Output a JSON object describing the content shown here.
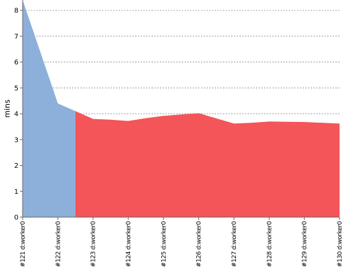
{
  "chart_data": {
    "type": "area",
    "ylabel": "mins",
    "xlabel": "",
    "ylim": [
      0,
      8.4
    ],
    "yticks": [
      0,
      1,
      2,
      3,
      4,
      5,
      6,
      7,
      8
    ],
    "grid": true,
    "legend": "none",
    "categories": [
      "#121 d:worker0",
      "#122 d:worker0",
      "#123 d:worker0",
      "#124 d:worker0",
      "#125 d:worker0",
      "#126 d:worker0",
      "#127 d:worker0",
      "#128 d:worker0",
      "#129 d:worker0",
      "#130 d:worker0"
    ],
    "segments": [
      {
        "color": "#8db0db",
        "points": [
          [
            0,
            8.4
          ],
          [
            1,
            4.4
          ],
          [
            1.5,
            4.1
          ]
        ]
      },
      {
        "color": "#f35558",
        "points": [
          [
            1.5,
            4.1
          ],
          [
            2,
            3.8
          ],
          [
            2.5,
            3.77
          ],
          [
            3,
            3.72
          ],
          [
            3.5,
            3.83
          ],
          [
            4,
            3.92
          ],
          [
            5,
            4.02
          ],
          [
            6,
            3.62
          ],
          [
            6.5,
            3.65
          ],
          [
            7,
            3.7
          ],
          [
            8,
            3.68
          ],
          [
            9,
            3.62
          ]
        ]
      }
    ]
  }
}
